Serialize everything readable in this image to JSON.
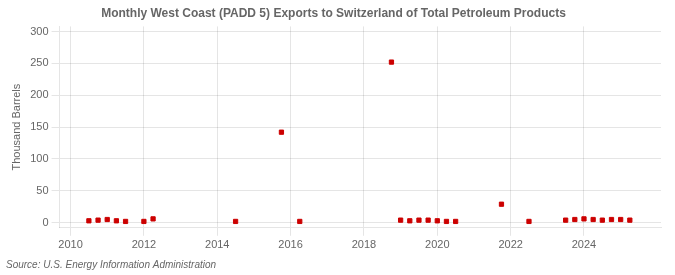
{
  "chart_data": {
    "type": "scatter",
    "title": "Monthly West Coast (PADD 5) Exports to Switzerland of Total Petroleum Products",
    "ylabel": "Thousand Barrels",
    "annotation": "Source: U.S. Energy Information Administration",
    "color": "#cc0000",
    "marker": "square",
    "grid": true,
    "xlim": [
      2009.7,
      2026.1
    ],
    "ylim": [
      -8,
      308
    ],
    "xticks": [
      2010,
      2012,
      2014,
      2016,
      2018,
      2020,
      2022,
      2024
    ],
    "yticks": [
      0,
      50,
      100,
      150,
      200,
      250,
      300
    ],
    "x": [
      2010.5,
      2010.75,
      2011.0,
      2011.25,
      2011.5,
      2012.0,
      2012.25,
      2014.5,
      2015.75,
      2016.25,
      2018.75,
      2019.0,
      2019.25,
      2019.5,
      2019.75,
      2020.0,
      2020.25,
      2020.5,
      2021.75,
      2022.5,
      2023.5,
      2023.75,
      2024.0,
      2024.25,
      2024.5,
      2024.75,
      2025.0,
      2025.25
    ],
    "values": [
      3,
      4,
      5,
      3,
      2,
      2,
      6,
      2,
      142,
      2,
      252,
      4,
      3,
      4,
      4,
      3,
      2,
      2,
      29,
      2,
      4,
      5,
      6,
      5,
      4,
      5,
      5,
      4
    ]
  }
}
